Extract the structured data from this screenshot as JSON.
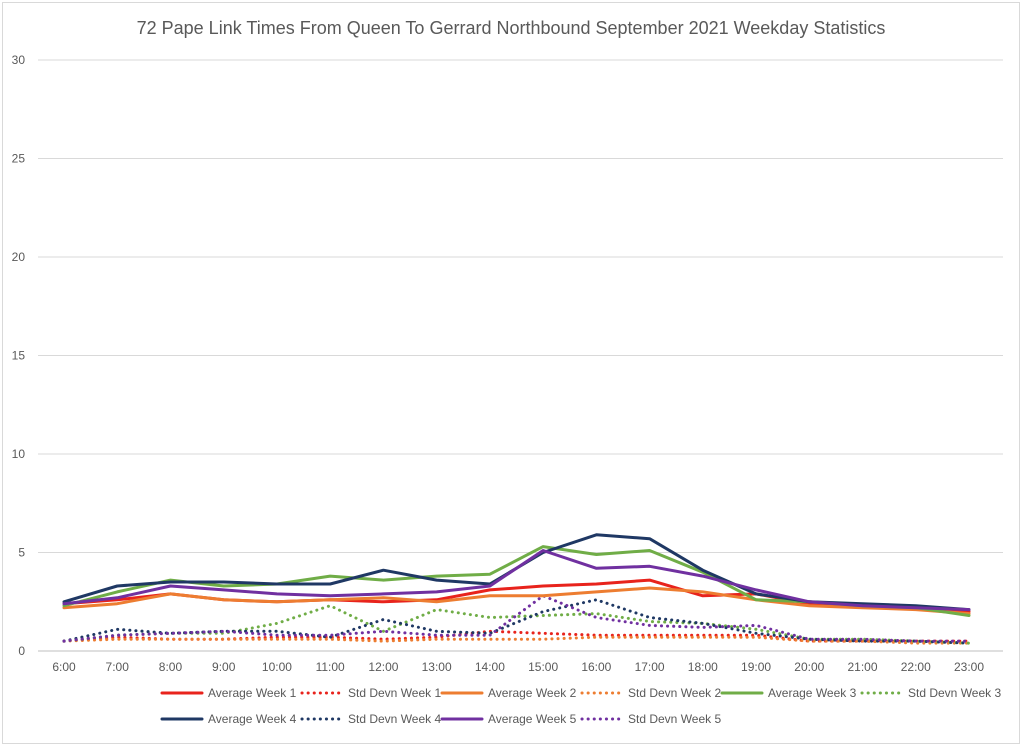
{
  "chart_data": {
    "type": "line",
    "title": "72 Pape Link Times From Queen To Gerrard Northbound September 2021 Weekday Statistics",
    "xlabel": "",
    "ylabel": "",
    "categories": [
      "6:00",
      "7:00",
      "8:00",
      "9:00",
      "10:00",
      "11:00",
      "12:00",
      "13:00",
      "14:00",
      "15:00",
      "16:00",
      "17:00",
      "18:00",
      "19:00",
      "20:00",
      "21:00",
      "22:00",
      "23:00"
    ],
    "ylim": [
      0,
      30
    ],
    "yticks": [
      0,
      5,
      10,
      15,
      20,
      25,
      30
    ],
    "grid": true,
    "legend_position": "bottom",
    "series": [
      {
        "name": "Average Week 1",
        "color": "#e8231c",
        "style": "solid",
        "values": [
          2.4,
          2.6,
          2.9,
          2.6,
          2.5,
          2.6,
          2.5,
          2.6,
          3.1,
          3.3,
          3.4,
          3.6,
          2.8,
          2.9,
          2.4,
          2.3,
          2.2,
          2.0
        ]
      },
      {
        "name": "Std Devn Week 1",
        "color": "#e8231c",
        "style": "dotted",
        "values": [
          0.5,
          0.7,
          0.6,
          0.6,
          0.7,
          0.7,
          0.6,
          0.7,
          1.0,
          0.9,
          0.8,
          0.8,
          0.8,
          0.8,
          0.5,
          0.5,
          0.5,
          0.5
        ]
      },
      {
        "name": "Average Week 2",
        "color": "#ed7d31",
        "style": "solid",
        "values": [
          2.2,
          2.4,
          2.9,
          2.6,
          2.5,
          2.6,
          2.7,
          2.5,
          2.8,
          2.8,
          3.0,
          3.2,
          3.0,
          2.6,
          2.3,
          2.2,
          2.1,
          1.9
        ]
      },
      {
        "name": "Std Devn Week 2",
        "color": "#ed7d31",
        "style": "dotted",
        "values": [
          0.5,
          0.6,
          0.6,
          0.6,
          0.6,
          0.6,
          0.5,
          0.6,
          0.6,
          0.6,
          0.7,
          0.7,
          0.7,
          0.7,
          0.5,
          0.5,
          0.4,
          0.4
        ]
      },
      {
        "name": "Average Week 3",
        "color": "#70ad47",
        "style": "solid",
        "values": [
          2.3,
          3.0,
          3.6,
          3.3,
          3.4,
          3.8,
          3.6,
          3.8,
          3.9,
          5.3,
          4.9,
          5.1,
          4.0,
          2.6,
          2.5,
          2.3,
          2.2,
          1.8
        ]
      },
      {
        "name": "Std Devn Week 3",
        "color": "#70ad47",
        "style": "dotted",
        "values": [
          0.5,
          0.8,
          0.9,
          0.9,
          1.4,
          2.3,
          1.0,
          2.1,
          1.7,
          1.8,
          1.9,
          1.5,
          1.4,
          1.1,
          0.6,
          0.6,
          0.5,
          0.4
        ]
      },
      {
        "name": "Average Week 4",
        "color": "#1f3864",
        "style": "solid",
        "values": [
          2.5,
          3.3,
          3.5,
          3.5,
          3.4,
          3.4,
          4.1,
          3.6,
          3.4,
          5.0,
          5.9,
          5.7,
          4.1,
          2.9,
          2.5,
          2.4,
          2.3,
          2.1
        ]
      },
      {
        "name": "Std Devn Week 4",
        "color": "#1f3864",
        "style": "dotted",
        "values": [
          0.5,
          1.1,
          0.9,
          1.0,
          1.0,
          0.7,
          1.6,
          1.0,
          0.9,
          2.0,
          2.6,
          1.7,
          1.4,
          0.9,
          0.6,
          0.5,
          0.5,
          0.4
        ]
      },
      {
        "name": "Average Week 5",
        "color": "#7030a0",
        "style": "solid",
        "values": [
          2.4,
          2.7,
          3.3,
          3.1,
          2.9,
          2.8,
          2.9,
          3.0,
          3.3,
          5.1,
          4.2,
          4.3,
          3.8,
          3.1,
          2.5,
          2.3,
          2.2,
          2.1
        ]
      },
      {
        "name": "Std Devn Week 5",
        "color": "#7030a0",
        "style": "dotted",
        "values": [
          0.5,
          0.8,
          0.9,
          1.0,
          0.8,
          0.8,
          1.0,
          0.8,
          0.8,
          2.8,
          1.7,
          1.3,
          1.2,
          1.3,
          0.6,
          0.6,
          0.5,
          0.5
        ]
      }
    ]
  }
}
